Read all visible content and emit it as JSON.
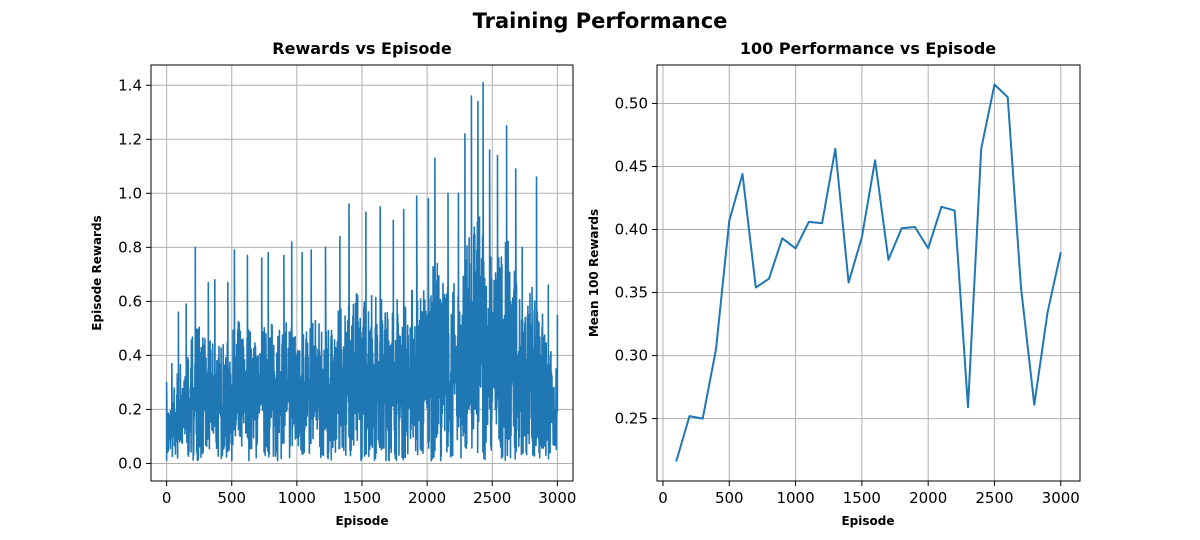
{
  "figure_title": "Training Performance",
  "chart_data": [
    {
      "type": "line",
      "title": "Rewards vs Episode",
      "xlabel": "Episode",
      "ylabel": "Episode Rewards",
      "xlim": [
        -120,
        3120
      ],
      "ylim": [
        -0.065,
        1.475
      ],
      "xticks": [
        0,
        500,
        1000,
        1500,
        2000,
        2500,
        3000
      ],
      "yticks": [
        0.0,
        0.2,
        0.4,
        0.6,
        0.8,
        1.0,
        1.2,
        1.4
      ],
      "grid": true,
      "line_color": "#1f77b4",
      "series": [
        {
          "x_range": [
            0,
            3000
          ],
          "note_points": "dense per-episode rewards; approximate envelope shown by selected peaks",
          "peaks": [
            [
              0,
              0.3
            ],
            [
              40,
              0.37
            ],
            [
              90,
              0.56
            ],
            [
              150,
              0.59
            ],
            [
              220,
              0.8
            ],
            [
              320,
              0.67
            ],
            [
              370,
              0.68
            ],
            [
              470,
              0.67
            ],
            [
              520,
              0.79
            ],
            [
              620,
              0.77
            ],
            [
              730,
              0.76
            ],
            [
              780,
              0.78
            ],
            [
              900,
              0.77
            ],
            [
              960,
              0.82
            ],
            [
              1040,
              0.78
            ],
            [
              1110,
              0.79
            ],
            [
              1220,
              0.8
            ],
            [
              1330,
              0.84
            ],
            [
              1400,
              0.96
            ],
            [
              1530,
              0.93
            ],
            [
              1640,
              0.95
            ],
            [
              1740,
              0.9
            ],
            [
              1820,
              0.94
            ],
            [
              1920,
              0.99
            ],
            [
              2010,
              0.98
            ],
            [
              2060,
              1.13
            ],
            [
              2160,
              1.0
            ],
            [
              2240,
              1.0
            ],
            [
              2290,
              1.22
            ],
            [
              2340,
              1.36
            ],
            [
              2390,
              1.34
            ],
            [
              2430,
              1.41
            ],
            [
              2480,
              1.16
            ],
            [
              2540,
              1.14
            ],
            [
              2610,
              1.25
            ],
            [
              2680,
              1.09
            ],
            [
              2730,
              0.8
            ],
            [
              2840,
              1.06
            ],
            [
              2930,
              0.66
            ],
            [
              3000,
              0.55
            ]
          ],
          "troughs_min": 0.01
        }
      ]
    },
    {
      "type": "line",
      "title": "100 Performance vs Episode",
      "xlabel": "Episode",
      "ylabel": "Mean 100 Rewards",
      "xlim": [
        -45,
        3145
      ],
      "ylim": [
        0.2005,
        0.5305
      ],
      "xticks": [
        0,
        500,
        1000,
        1500,
        2000,
        2500,
        3000
      ],
      "yticks": [
        0.25,
        0.3,
        0.35,
        0.4,
        0.45,
        0.5
      ],
      "ytick_labels": [
        "0.25",
        "0.30",
        "0.35",
        "0.40",
        "0.45",
        "0.50"
      ],
      "grid": true,
      "line_color": "#1f77b4",
      "series": [
        {
          "x": [
            100,
            200,
            300,
            400,
            500,
            600,
            700,
            800,
            900,
            1000,
            1100,
            1200,
            1300,
            1400,
            1500,
            1600,
            1700,
            1800,
            1900,
            2000,
            2100,
            2200,
            2300,
            2400,
            2500,
            2600,
            2700,
            2800,
            2900,
            3000
          ],
          "y": [
            0.216,
            0.252,
            0.25,
            0.305,
            0.407,
            0.444,
            0.354,
            0.361,
            0.393,
            0.385,
            0.406,
            0.405,
            0.464,
            0.358,
            0.394,
            0.455,
            0.376,
            0.401,
            0.402,
            0.385,
            0.418,
            0.415,
            0.259,
            0.464,
            0.515,
            0.505,
            0.354,
            0.261,
            0.334,
            0.382
          ]
        }
      ]
    }
  ]
}
